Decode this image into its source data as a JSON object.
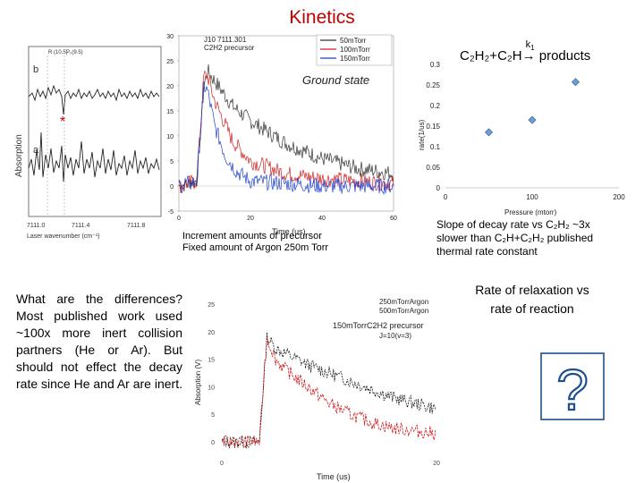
{
  "slide": {
    "title": "Kinetics",
    "caption_left": [
      "Increment amounts of precursor",
      "Fixed amount of Argon 250m Torr"
    ],
    "caption_right": [
      "Slope of decay rate vs C₂H₂ ~3x",
      "slower than C₂H+C₂H₂ published",
      "thermal rate constant"
    ],
    "question_text": "What are the differences? Most published work used ~100x more inert collision partners (He or Ar). But should not effect the decay rate since He and Ar are inert.",
    "relaxation_text": [
      "Rate of relaxation vs",
      "rate of reaction"
    ],
    "ground_state_label": "Ground state",
    "reaction": {
      "lhs": "C₂H₂+C₂H",
      "k": "k",
      "k_sub": "1",
      "rhs": "products"
    }
  },
  "spectrum": {
    "y_label": "Absorption",
    "x_label": "Laser wavenumber (cm⁻¹)",
    "x_ticks": [
      "7111.0",
      "7111.4",
      "7111.8"
    ],
    "trace_labels": [
      "b",
      "a"
    ],
    "line_labels": [
      "R (10.5)",
      "P₂(9.5)"
    ],
    "marker": "*"
  },
  "decay_plot": {
    "chart_data": {
      "type": "line",
      "title": "J10 7111.301 C2H2 precursor",
      "xlabel": "Time (us)",
      "ylabel": "",
      "xlim": [
        0,
        60
      ],
      "ylim": [
        -5,
        30
      ],
      "x_ticks": [
        "0",
        "20",
        "40",
        "60"
      ],
      "y_ticks": [
        "-5",
        "0",
        "5",
        "10",
        "15",
        "20",
        "25",
        "30"
      ],
      "series": [
        {
          "name": "50mTorr",
          "color": "#333333",
          "x": [
            0,
            5,
            7,
            8,
            10,
            15,
            20,
            30,
            40,
            50,
            60
          ],
          "y": [
            0,
            1,
            20,
            23,
            21,
            16,
            13,
            8.5,
            5.5,
            3.5,
            2.5
          ]
        },
        {
          "name": "100mTorr",
          "color": "#d02020",
          "x": [
            0,
            5,
            7,
            8,
            10,
            15,
            20,
            30,
            40,
            50,
            60
          ],
          "y": [
            0,
            1,
            22,
            22,
            17,
            9,
            5,
            2.5,
            1.5,
            1,
            0.5
          ]
        },
        {
          "name": "150mTorr",
          "color": "#2040d0",
          "x": [
            0,
            5,
            7,
            8,
            10,
            13,
            16,
            20,
            30,
            40,
            60
          ],
          "y": [
            0,
            1,
            20,
            19,
            12,
            6,
            3,
            1,
            0.5,
            0,
            0
          ]
        }
      ]
    }
  },
  "rate_plot": {
    "chart_data": {
      "type": "scatter",
      "title": "",
      "xlabel": "Pressure (mtorr)",
      "ylabel": "rate(1/us)",
      "xlim": [
        0,
        200
      ],
      "ylim": [
        0,
        0.3
      ],
      "x_ticks": [
        "0",
        "100",
        "200"
      ],
      "y_ticks": [
        "0",
        "0.05",
        "0.1",
        "0.15",
        "0.2",
        "0.25",
        "0.3"
      ],
      "series": [
        {
          "x": [
            50,
            100,
            150
          ],
          "y": [
            0.135,
            0.165,
            0.257
          ]
        }
      ]
    }
  },
  "compare_plot": {
    "chart_data": {
      "type": "line",
      "title": "",
      "xlabel": "Time (us)",
      "ylabel": "Absorption (V)",
      "xlim": [
        0,
        20
      ],
      "ylim": [
        0,
        25
      ],
      "x_ticks": [
        "0",
        "20"
      ],
      "y_ticks": [
        "0",
        "5",
        "10",
        "15",
        "20",
        "25"
      ],
      "series": [
        {
          "name": "250mTorrArgon 500mTorrArgon",
          "color": "#000000",
          "x": [
            0,
            3.5,
            4.2,
            5,
            6,
            8,
            10,
            12,
            14,
            16,
            18,
            20
          ],
          "y": [
            0,
            0,
            19,
            17,
            16,
            14,
            12.5,
            11,
            9.5,
            8,
            7,
            6
          ]
        },
        {
          "name": "150mTorrC2H2 precursor J=10(v=3)",
          "color": "#cc0000",
          "x": [
            0,
            3.5,
            4.2,
            5,
            6,
            8,
            10,
            12,
            14,
            16,
            18,
            20
          ],
          "y": [
            0,
            0,
            19,
            15,
            13,
            10,
            7,
            5,
            3.5,
            2.5,
            2,
            1.5
          ]
        }
      ]
    }
  }
}
